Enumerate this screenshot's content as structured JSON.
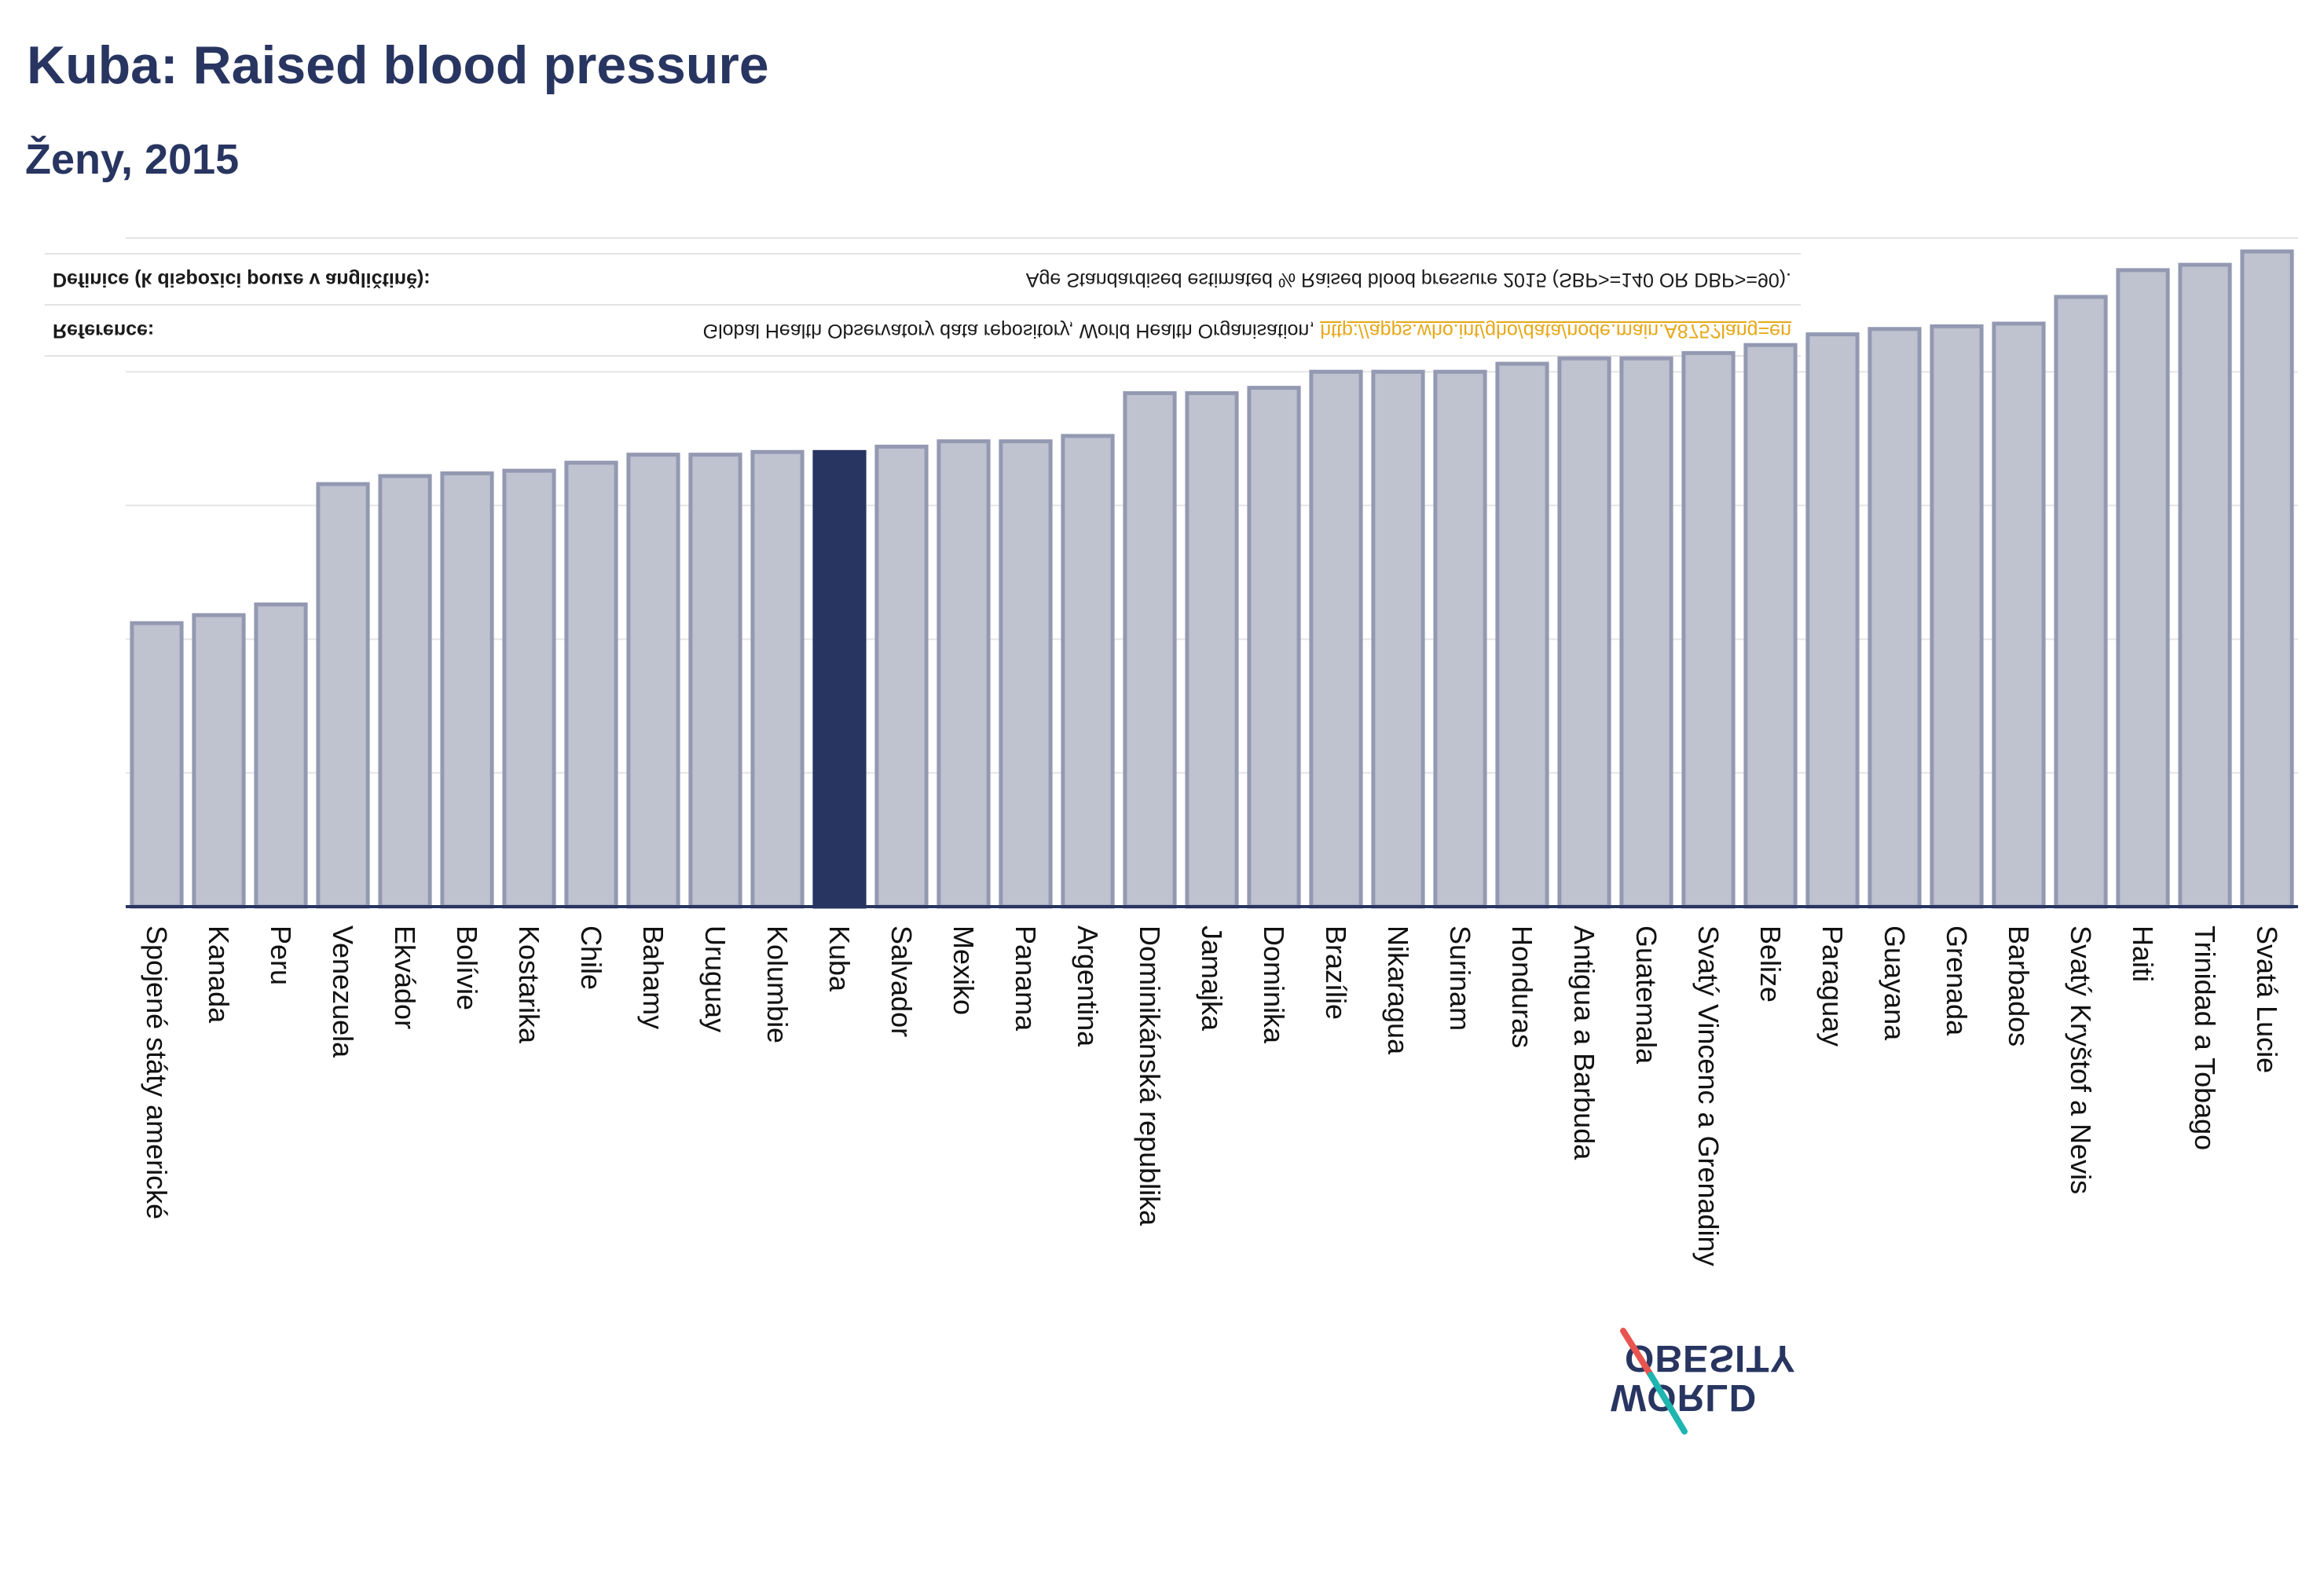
{
  "definition": {
    "label": "Definice (k dispozici pouze v angličtině):",
    "text": "Age Standardised estimated % Raised blood pressure 2015 (SBP>=140 OR DBP>=90)."
  },
  "reference": {
    "label": "Reference:",
    "text": "Global Health Observatory data repository, World Health Organisation, ",
    "link": "http://apps.who.int/gho/data/node.main.A875?lang=en"
  },
  "logo": {
    "line1": "WORLD",
    "line2": "OBESITY"
  },
  "colors": {
    "text": "#283561",
    "bar_fill": "#bfc2cf",
    "bar_stroke": "#9499b2",
    "highlight": "#283561",
    "grid": "#e5e5e5",
    "axis": "#283561",
    "tick_label": "#111111",
    "link": "#e6a817",
    "logo_slash_top": "#e8544f",
    "logo_slash_bottom": "#1fb5b0"
  },
  "chart_data": {
    "type": "bar",
    "title": "Kuba: Raised blood pressure",
    "subtitle": "Ženy, 2015",
    "xlabel": "",
    "ylabel": "",
    "ylim": [
      0,
      25
    ],
    "y_gridlines": [
      5,
      10,
      15,
      20,
      25
    ],
    "grid": true,
    "legend": "none",
    "highlight": "Kuba",
    "categories": [
      "Spojené státy americké",
      "Kanada",
      "Peru",
      "Venezuela",
      "Ekvádor",
      "Bolívie",
      "Kostarika",
      "Chile",
      "Bahamy",
      "Uruguay",
      "Kolumbie",
      "Kuba",
      "Salvador",
      "Mexiko",
      "Panama",
      "Argentina",
      "Dominikánská republika",
      "Jamajka",
      "Dominika",
      "Brazílie",
      "Nikaragua",
      "Surinam",
      "Honduras",
      "Antigua a Barbuda",
      "Guatemala",
      "Svatý Vincenc a Grenadiny",
      "Belize",
      "Paraguay",
      "Guayana",
      "Grenada",
      "Barbados",
      "Svatý Kryštof a Nevis",
      "Haiti",
      "Trinidad a Tobago",
      "Svatá Lucie"
    ],
    "values": [
      10.6,
      10.9,
      11.3,
      15.8,
      16.1,
      16.2,
      16.3,
      16.6,
      16.9,
      16.9,
      17.0,
      17.0,
      17.2,
      17.4,
      17.4,
      17.6,
      19.2,
      19.2,
      19.4,
      20.0,
      20.0,
      20.0,
      20.3,
      20.5,
      20.5,
      20.7,
      21.0,
      21.4,
      21.6,
      21.7,
      21.8,
      22.8,
      23.8,
      24.0,
      24.5
    ]
  }
}
